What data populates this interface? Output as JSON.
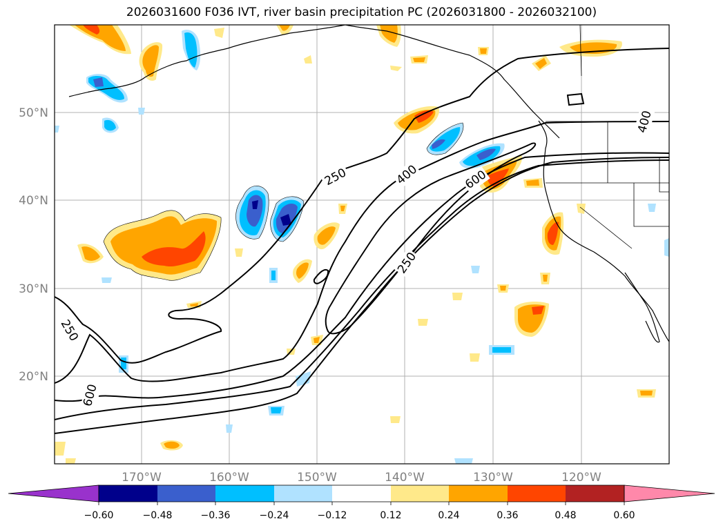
{
  "title": "2026031600 F036 IVT, river basin precipitation PC (2026031800 - 2026032100)",
  "lat_ticks": [
    "20°N",
    "30°N",
    "40°N",
    "50°N"
  ],
  "lon_ticks": [
    "170°W",
    "160°W",
    "150°W",
    "140°W",
    "130°W",
    "120°W"
  ],
  "contour_labels": [
    "250",
    "250",
    "400",
    "600",
    "250",
    "600",
    "400"
  ],
  "colorbar": {
    "tick_labels": [
      "−0.60",
      "−0.48",
      "−0.36",
      "−0.24",
      "−0.12",
      "0.12",
      "0.24",
      "0.36",
      "0.48",
      "0.60"
    ],
    "colors": [
      "#9932cc",
      "#00008b",
      "#3a5fcd",
      "#00bfff",
      "#b0e2ff",
      "#ffffff",
      "#ffe98a",
      "#ffa500",
      "#ff4500",
      "#b22222",
      "#ff88aa"
    ]
  },
  "chart_data": {
    "type": "map-contour",
    "title": "2026031600 F036 IVT, river basin precipitation PC (2026031800 - 2026032100)",
    "lon_range": [
      -180,
      -110
    ],
    "lat_range": [
      10,
      60
    ],
    "ivt_contour_levels": [
      250,
      400,
      600
    ],
    "pc_levels": [
      -0.6,
      -0.48,
      -0.36,
      -0.24,
      -0.12,
      0.12,
      0.24,
      0.36,
      0.48,
      0.6
    ]
  }
}
